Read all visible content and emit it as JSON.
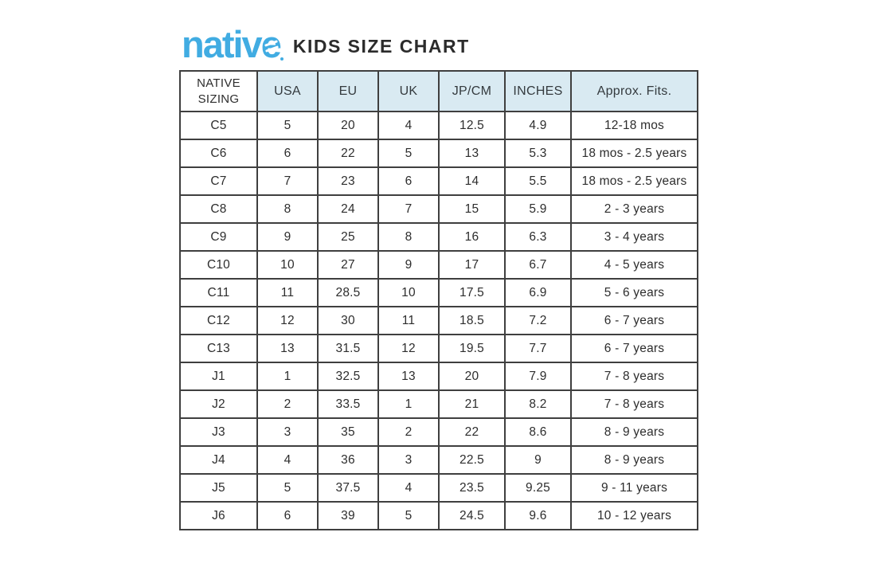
{
  "header": {
    "logo_text": "native",
    "title": "KIDS SIZE CHART"
  },
  "colors": {
    "logo_blue": "#41ace2",
    "header_row_bg": "#d9eaf2",
    "table_border": "#3f3f3f",
    "text_dark": "#2d2d2d",
    "page_bg": "#ffffff"
  },
  "table": {
    "columns": [
      "NATIVE SIZING",
      "USA",
      "EU",
      "UK",
      "JP/CM",
      "INCHES",
      "Approx. Fits."
    ],
    "rows": [
      [
        "C5",
        "5",
        "20",
        "4",
        "12.5",
        "4.9",
        "12-18 mos"
      ],
      [
        "C6",
        "6",
        "22",
        "5",
        "13",
        "5.3",
        "18 mos - 2.5 years"
      ],
      [
        "C7",
        "7",
        "23",
        "6",
        "14",
        "5.5",
        "18 mos - 2.5 years"
      ],
      [
        "C8",
        "8",
        "24",
        "7",
        "15",
        "5.9",
        "2 - 3 years"
      ],
      [
        "C9",
        "9",
        "25",
        "8",
        "16",
        "6.3",
        "3 - 4 years"
      ],
      [
        "C10",
        "10",
        "27",
        "9",
        "17",
        "6.7",
        "4 - 5 years"
      ],
      [
        "C11",
        "11",
        "28.5",
        "10",
        "17.5",
        "6.9",
        "5 - 6 years"
      ],
      [
        "C12",
        "12",
        "30",
        "11",
        "18.5",
        "7.2",
        "6 - 7 years"
      ],
      [
        "C13",
        "13",
        "31.5",
        "12",
        "19.5",
        "7.7",
        "6 - 7 years"
      ],
      [
        "J1",
        "1",
        "32.5",
        "13",
        "20",
        "7.9",
        "7 - 8 years"
      ],
      [
        "J2",
        "2",
        "33.5",
        "1",
        "21",
        "8.2",
        "7 - 8 years"
      ],
      [
        "J3",
        "3",
        "35",
        "2",
        "22",
        "8.6",
        "8 - 9 years"
      ],
      [
        "J4",
        "4",
        "36",
        "3",
        "22.5",
        "9",
        "8 - 9 years"
      ],
      [
        "J5",
        "5",
        "37.5",
        "4",
        "23.5",
        "9.25",
        "9 - 11 years"
      ],
      [
        "J6",
        "6",
        "39",
        "5",
        "24.5",
        "9.6",
        "10 - 12 years"
      ]
    ]
  }
}
